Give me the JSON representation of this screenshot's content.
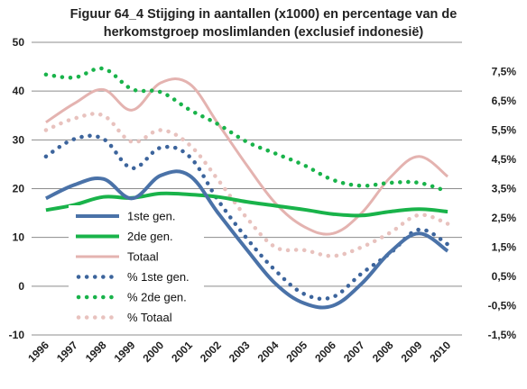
{
  "chart_data": {
    "type": "line",
    "title_lines": [
      "Figuur 64_4 Stijging in aantallen (x1000) en percentage van de",
      "herkomstgroep moslimlanden (exclusief indonesië)"
    ],
    "x": [
      "1996",
      "1997",
      "1998",
      "1999",
      "2000",
      "2001",
      "2002",
      "2003",
      "2004",
      "2005",
      "2006",
      "2007",
      "2008",
      "2009",
      "2010"
    ],
    "y_left": {
      "min": -10,
      "max": 50,
      "ticks": [
        "-10",
        "0",
        "10",
        "20",
        "30",
        "40",
        "50"
      ]
    },
    "y_right": {
      "min": -1.5,
      "max": 8.5,
      "ticks": [
        "-1,5%",
        "-0,5%",
        "0,5%",
        "1,5%",
        "2,5%",
        "3,5%",
        "4,5%",
        "5,5%",
        "6,5%",
        "7,5%"
      ]
    },
    "grid": true,
    "legend_position": "inside-left",
    "series": [
      {
        "name": "1ste gen.",
        "axis": "left",
        "style": "solid",
        "color": "#4a72a8",
        "values": [
          18,
          20.8,
          22,
          18,
          22.7,
          22.7,
          15,
          7.5,
          0.5,
          -3.5,
          -4,
          0.5,
          7,
          10.8,
          7.2
        ]
      },
      {
        "name": "2de gen.",
        "axis": "left",
        "style": "solid",
        "color": "#19b34a",
        "values": [
          15.6,
          16.7,
          18.3,
          18.1,
          19,
          18.8,
          18.3,
          17.3,
          16.5,
          15.7,
          14.8,
          14.5,
          15.3,
          15.8,
          15.3
        ]
      },
      {
        "name": "Totaal",
        "axis": "left",
        "style": "solid",
        "color": "#e4b3b0",
        "values": [
          33.6,
          37.5,
          40.3,
          36.1,
          41.7,
          41.5,
          33.3,
          24.8,
          17,
          12.2,
          10.8,
          15,
          22.3,
          26.6,
          22.5
        ]
      },
      {
        "name": "% 1ste gen.",
        "axis": "right",
        "style": "dotted",
        "color": "#3c649c",
        "values": [
          4.6,
          5.2,
          5.2,
          4.2,
          4.9,
          4.6,
          3.1,
          1.8,
          0.7,
          -0.1,
          -0.2,
          0.6,
          1.3,
          2.1,
          1.6
        ]
      },
      {
        "name": "% 2de gen.",
        "axis": "right",
        "style": "dotted",
        "color": "#19b34a",
        "values": [
          7.4,
          7.3,
          7.6,
          6.9,
          6.8,
          6.2,
          5.7,
          5.1,
          4.7,
          4.3,
          3.8,
          3.6,
          3.7,
          3.7,
          3.4
        ]
      },
      {
        "name": "% Totaal",
        "axis": "right",
        "style": "dotted",
        "color": "#e8c2be",
        "values": [
          5.5,
          5.9,
          6.0,
          5.1,
          5.5,
          5.0,
          3.8,
          2.5,
          1.5,
          1.4,
          1.2,
          1.5,
          2.0,
          2.6,
          2.3
        ]
      }
    ]
  }
}
